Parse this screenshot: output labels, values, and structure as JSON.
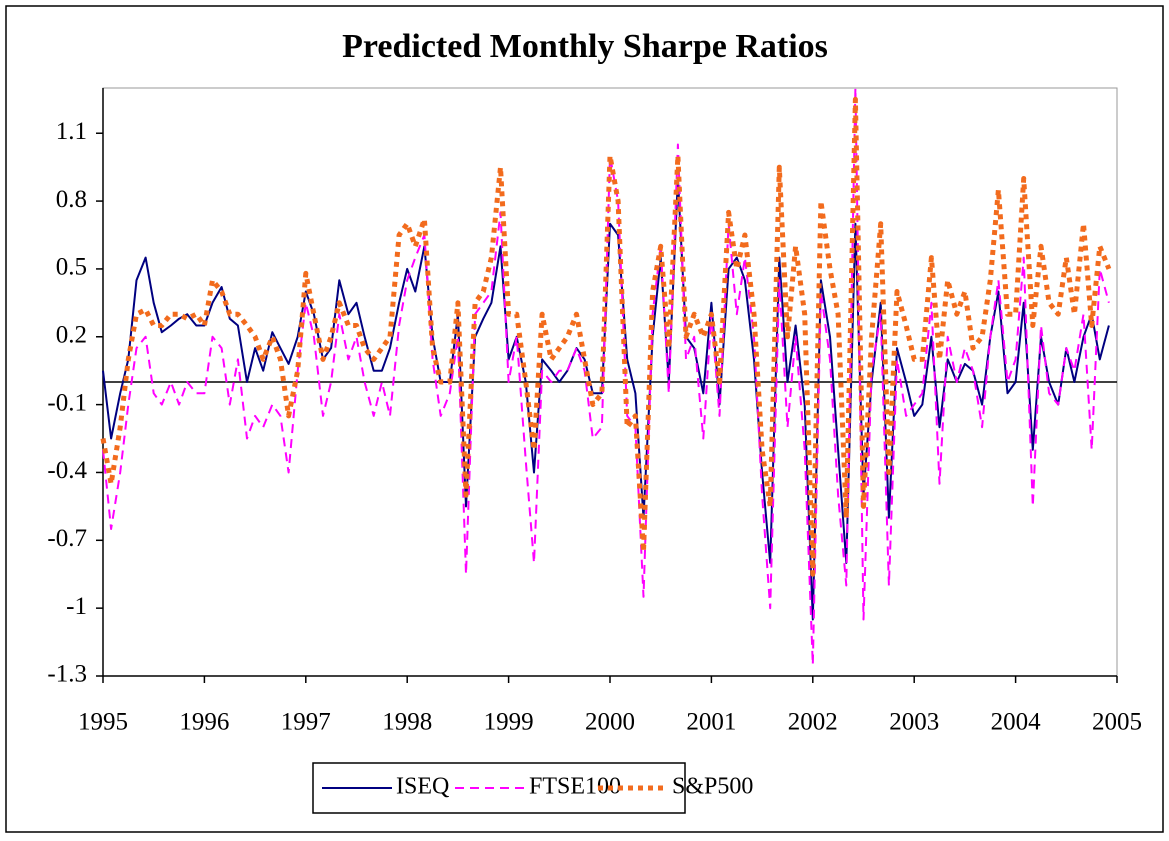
{
  "chart_data": {
    "type": "line",
    "title": "Predicted Monthly Sharpe Ratios",
    "x": [
      1995,
      1995.08,
      1995.17,
      1995.25,
      1995.33,
      1995.42,
      1995.5,
      1995.58,
      1995.67,
      1995.75,
      1995.83,
      1995.92,
      1996,
      1996.08,
      1996.17,
      1996.25,
      1996.33,
      1996.42,
      1996.5,
      1996.58,
      1996.67,
      1996.75,
      1996.83,
      1996.92,
      1997,
      1997.08,
      1997.17,
      1997.25,
      1997.33,
      1997.42,
      1997.5,
      1997.58,
      1997.67,
      1997.75,
      1997.83,
      1997.92,
      1998,
      1998.08,
      1998.17,
      1998.25,
      1998.33,
      1998.42,
      1998.5,
      1998.58,
      1998.67,
      1998.75,
      1998.83,
      1998.92,
      1999,
      1999.08,
      1999.17,
      1999.25,
      1999.33,
      1999.42,
      1999.5,
      1999.58,
      1999.67,
      1999.75,
      1999.83,
      1999.92,
      2000,
      2000.08,
      2000.17,
      2000.25,
      2000.33,
      2000.42,
      2000.5,
      2000.58,
      2000.67,
      2000.75,
      2000.83,
      2000.92,
      2001,
      2001.08,
      2001.17,
      2001.25,
      2001.33,
      2001.42,
      2001.5,
      2001.58,
      2001.67,
      2001.75,
      2001.83,
      2001.92,
      2002,
      2002.08,
      2002.17,
      2002.25,
      2002.33,
      2002.42,
      2002.5,
      2002.58,
      2002.67,
      2002.75,
      2002.83,
      2002.92,
      2003,
      2003.08,
      2003.17,
      2003.25,
      2003.33,
      2003.42,
      2003.5,
      2003.58,
      2003.67,
      2003.75,
      2003.83,
      2003.92,
      2004,
      2004.08,
      2004.17,
      2004.25,
      2004.33,
      2004.42,
      2004.5,
      2004.58,
      2004.67,
      2004.75,
      2004.83,
      2004.92
    ],
    "series": [
      {
        "name": "ISEQ",
        "color": "#000080",
        "style": "solid",
        "values": [
          0.05,
          -0.25,
          -0.05,
          0.1,
          0.45,
          0.55,
          0.35,
          0.22,
          0.25,
          0.28,
          0.3,
          0.25,
          0.25,
          0.35,
          0.42,
          0.28,
          0.25,
          0.0,
          0.15,
          0.05,
          0.22,
          0.15,
          0.08,
          0.2,
          0.4,
          0.3,
          0.1,
          0.15,
          0.45,
          0.3,
          0.35,
          0.2,
          0.05,
          0.05,
          0.15,
          0.35,
          0.5,
          0.4,
          0.6,
          0.2,
          0.0,
          0.0,
          0.3,
          -0.55,
          0.2,
          0.28,
          0.35,
          0.6,
          0.1,
          0.2,
          0.0,
          -0.4,
          0.1,
          0.05,
          0.0,
          0.05,
          0.15,
          0.1,
          -0.05,
          -0.05,
          0.7,
          0.65,
          0.1,
          -0.05,
          -0.6,
          0.2,
          0.55,
          0.0,
          0.9,
          0.2,
          0.15,
          -0.05,
          0.35,
          -0.1,
          0.5,
          0.55,
          0.45,
          0.1,
          -0.4,
          -0.8,
          0.55,
          0.0,
          0.25,
          -0.1,
          -1.05,
          0.45,
          0.2,
          -0.3,
          -0.8,
          0.7,
          -0.5,
          0.0,
          0.35,
          -0.6,
          0.15,
          0.0,
          -0.15,
          -0.1,
          0.2,
          -0.2,
          0.1,
          0.0,
          0.08,
          0.05,
          -0.1,
          0.2,
          0.4,
          -0.05,
          0.0,
          0.35,
          -0.3,
          0.2,
          0.0,
          -0.1,
          0.15,
          0.0,
          0.2,
          0.3,
          0.1,
          0.25
        ]
      },
      {
        "name": "FTSE100",
        "color": "#ff00ff",
        "style": "dashed",
        "values": [
          -0.3,
          -0.65,
          -0.4,
          -0.1,
          0.15,
          0.2,
          -0.05,
          -0.1,
          0.0,
          -0.1,
          0.0,
          -0.05,
          -0.05,
          0.2,
          0.15,
          -0.1,
          0.1,
          -0.25,
          -0.15,
          -0.2,
          -0.1,
          -0.15,
          -0.4,
          0.05,
          0.35,
          0.2,
          -0.15,
          0.0,
          0.3,
          0.1,
          0.2,
          0.0,
          -0.15,
          0.0,
          -0.15,
          0.25,
          0.45,
          0.55,
          0.65,
          0.1,
          -0.15,
          -0.05,
          0.2,
          -0.85,
          0.3,
          0.35,
          0.4,
          0.75,
          0.0,
          0.2,
          -0.35,
          -0.8,
          0.05,
          0.0,
          0.05,
          0.05,
          0.15,
          0.05,
          -0.25,
          -0.2,
          1.0,
          0.8,
          -0.15,
          -0.2,
          -0.95,
          0.3,
          0.6,
          -0.05,
          1.05,
          0.1,
          0.2,
          -0.25,
          0.3,
          -0.15,
          0.7,
          0.3,
          0.55,
          0.2,
          -0.5,
          -1.0,
          0.45,
          -0.2,
          0.2,
          -0.3,
          -1.25,
          0.4,
          0.1,
          -0.5,
          -0.9,
          1.3,
          -1.05,
          0.05,
          0.3,
          -0.9,
          0.1,
          -0.15,
          -0.1,
          -0.05,
          0.35,
          -0.45,
          0.2,
          0.0,
          0.15,
          0.05,
          -0.2,
          0.2,
          0.45,
          0.0,
          0.1,
          0.55,
          -0.55,
          0.25,
          -0.05,
          -0.1,
          0.15,
          0.05,
          0.3,
          -0.3,
          0.5,
          0.35
        ]
      },
      {
        "name": "S&P500",
        "color": "#f26b1d",
        "style": "dotted",
        "values": [
          -0.25,
          -0.45,
          -0.2,
          0.1,
          0.3,
          0.32,
          0.25,
          0.25,
          0.3,
          0.3,
          0.28,
          0.3,
          0.25,
          0.45,
          0.4,
          0.3,
          0.3,
          0.25,
          0.2,
          0.1,
          0.2,
          0.1,
          -0.15,
          0.05,
          0.48,
          0.3,
          0.1,
          0.2,
          0.35,
          0.25,
          0.25,
          0.15,
          0.1,
          0.15,
          0.2,
          0.65,
          0.7,
          0.6,
          0.72,
          0.15,
          0.0,
          0.0,
          0.35,
          -0.5,
          0.35,
          0.4,
          0.55,
          0.95,
          0.3,
          0.3,
          0.0,
          -0.3,
          0.3,
          0.1,
          0.15,
          0.2,
          0.3,
          0.1,
          -0.1,
          -0.05,
          1.0,
          0.8,
          -0.2,
          -0.15,
          -0.75,
          0.4,
          0.6,
          0.15,
          1.0,
          0.2,
          0.3,
          0.2,
          0.3,
          0.0,
          0.75,
          0.5,
          0.65,
          0.3,
          -0.3,
          -0.55,
          0.95,
          0.2,
          0.6,
          0.3,
          -0.85,
          0.8,
          0.5,
          0.3,
          -0.6,
          1.25,
          -0.55,
          0.2,
          0.7,
          -0.4,
          0.4,
          0.25,
          0.1,
          0.1,
          0.55,
          0.1,
          0.45,
          0.3,
          0.4,
          0.15,
          0.2,
          0.45,
          0.85,
          0.3,
          0.3,
          0.9,
          0.25,
          0.6,
          0.35,
          0.3,
          0.55,
          0.3,
          0.7,
          0.25,
          0.6,
          0.5
        ]
      }
    ],
    "xlim": [
      1995,
      2005
    ],
    "xticks": [
      1995,
      1996,
      1997,
      1998,
      1999,
      2000,
      2001,
      2002,
      2003,
      2004,
      2005
    ],
    "ylim": [
      -1.3,
      1.3
    ],
    "yticks": [
      -1.3,
      -1,
      -0.7,
      -0.4,
      -0.1,
      0.2,
      0.5,
      0.8,
      1.1
    ],
    "reference_line": 0,
    "grid": false,
    "legend_position": "bottom"
  }
}
